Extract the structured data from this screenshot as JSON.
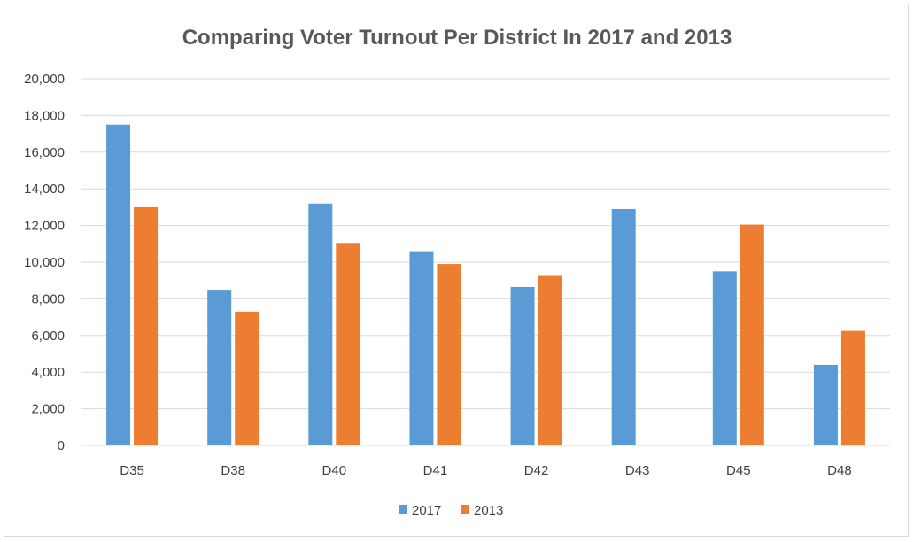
{
  "chart_data": {
    "type": "bar",
    "title": "Comparing Voter Turnout Per District In 2017 and 2013",
    "xlabel": "",
    "ylabel": "",
    "categories": [
      "D35",
      "D38",
      "D40",
      "D41",
      "D42",
      "D43",
      "D45",
      "D48"
    ],
    "series": [
      {
        "name": "2017",
        "values": [
          17500,
          8450,
          13200,
          10600,
          8650,
          12900,
          9500,
          4400
        ]
      },
      {
        "name": "2013",
        "values": [
          13000,
          7300,
          11050,
          9900,
          9250,
          0,
          12050,
          6250
        ]
      }
    ],
    "ylim": [
      0,
      20000
    ],
    "yticks": [
      "0",
      "2,000",
      "4,000",
      "6,000",
      "8,000",
      "10,000",
      "12,000",
      "14,000",
      "16,000",
      "18,000",
      "20,000"
    ],
    "grid": true,
    "legend": "bottom",
    "colors": {
      "2017": "#5b9bd5",
      "2013": "#ed7d31",
      "grid": "#d9d9d9"
    }
  }
}
